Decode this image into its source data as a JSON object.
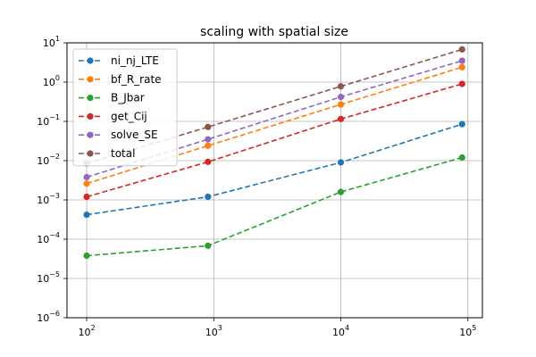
{
  "chart_data": {
    "type": "line",
    "title": "scaling with spatial size",
    "xlabel": "",
    "ylabel": "",
    "x_scale": "log",
    "y_scale": "log",
    "xlim": [
      70,
      130000
    ],
    "ylim": [
      1e-06,
      10
    ],
    "x": [
      100,
      900,
      10000,
      90000
    ],
    "x_ticks": [
      {
        "value": 100,
        "base": "10",
        "exp": "2"
      },
      {
        "value": 1000,
        "base": "10",
        "exp": "3"
      },
      {
        "value": 10000,
        "base": "10",
        "exp": "4"
      },
      {
        "value": 100000,
        "base": "10",
        "exp": "5"
      }
    ],
    "y_ticks": [
      {
        "value": 1e-06,
        "base": "10",
        "exp": "−6"
      },
      {
        "value": 1e-05,
        "base": "10",
        "exp": "−5"
      },
      {
        "value": 0.0001,
        "base": "10",
        "exp": "−4"
      },
      {
        "value": 0.001,
        "base": "10",
        "exp": "−3"
      },
      {
        "value": 0.01,
        "base": "10",
        "exp": "−2"
      },
      {
        "value": 0.1,
        "base": "10",
        "exp": "−1"
      },
      {
        "value": 1,
        "base": "10",
        "exp": "0"
      },
      {
        "value": 10,
        "base": "10",
        "exp": "1"
      }
    ],
    "grid": true,
    "legend_position": "top-left",
    "series": [
      {
        "name": "ni_nj_LTE",
        "color": "#1f77b4",
        "values": [
          0.00042,
          0.0012,
          0.009,
          0.085
        ]
      },
      {
        "name": "bf_R_rate",
        "color": "#ff7f0e",
        "values": [
          0.0026,
          0.024,
          0.27,
          2.4
        ]
      },
      {
        "name": "B_Jbar",
        "color": "#2ca02c",
        "values": [
          3.8e-05,
          6.8e-05,
          0.0016,
          0.012
        ]
      },
      {
        "name": "get_Cij",
        "color": "#d62728",
        "values": [
          0.0012,
          0.0093,
          0.115,
          0.9
        ]
      },
      {
        "name": "solve_SE",
        "color": "#9467bd",
        "values": [
          0.0038,
          0.035,
          0.42,
          3.5
        ]
      },
      {
        "name": "total",
        "color": "#8c564b",
        "values": [
          0.0085,
          0.072,
          0.78,
          6.8
        ]
      }
    ]
  }
}
